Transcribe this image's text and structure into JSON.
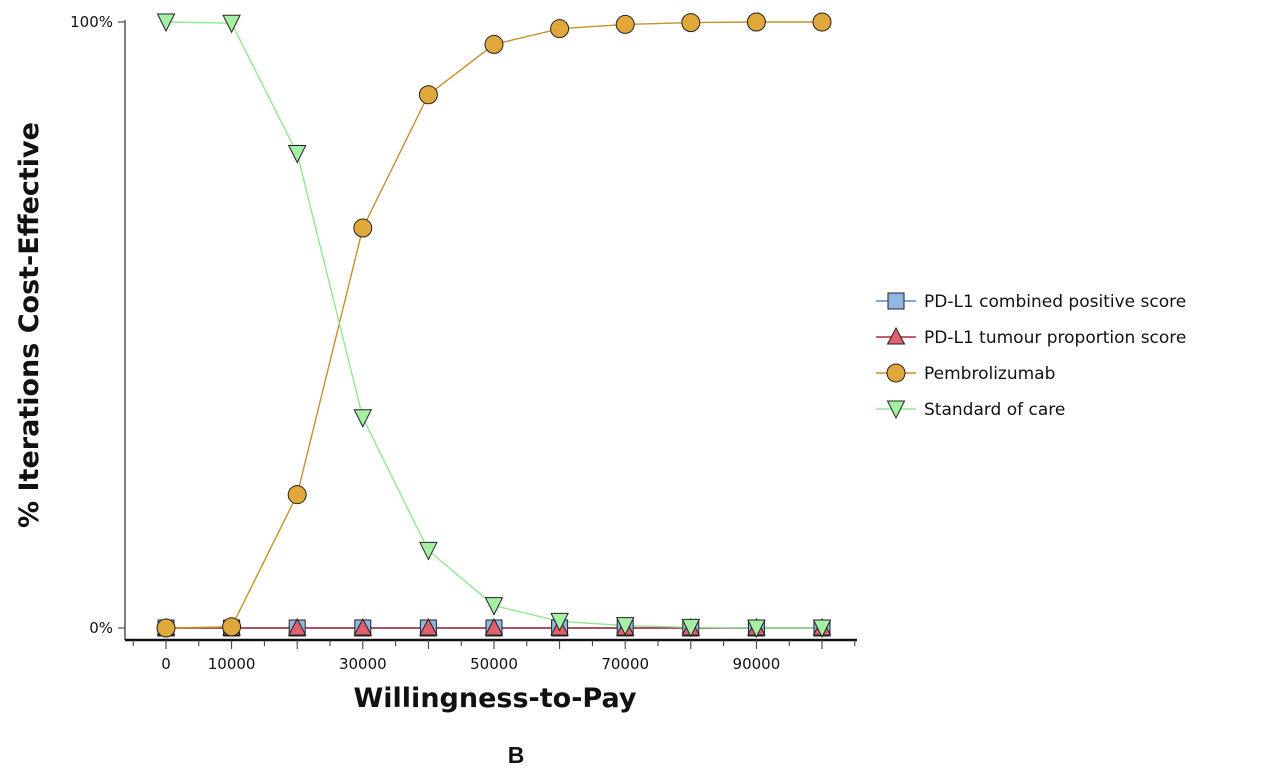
{
  "panel_label": "B",
  "chart_data": {
    "type": "line",
    "xlabel": "Willingness-to-Pay",
    "ylabel": "% Iterations Cost-Effective",
    "x": [
      0,
      10000,
      20000,
      30000,
      40000,
      50000,
      60000,
      70000,
      80000,
      90000,
      100000
    ],
    "x_tick_labels": [
      "0",
      "10000",
      "30000",
      "50000",
      "70000",
      "90000"
    ],
    "x_tick_values": [
      0,
      10000,
      30000,
      50000,
      70000,
      90000
    ],
    "xlim": [
      -5000,
      105000
    ],
    "ylim": [
      0,
      100
    ],
    "y_tick_labels": [
      "0%",
      "100%"
    ],
    "y_tick_values": [
      0,
      100
    ],
    "grid": false,
    "legend_position": "right",
    "series": [
      {
        "name": "PD-L1 combined positive score",
        "marker": "square",
        "color": "#4f8fcf",
        "fill": "#8fb8e0",
        "values": [
          0,
          0,
          0,
          0,
          0,
          0,
          0,
          0,
          0,
          0,
          0
        ]
      },
      {
        "name": "PD-L1 tumour proportion score",
        "marker": "triangle-up",
        "color": "#b02a3a",
        "fill": "#e06070",
        "values": [
          0,
          0,
          0,
          0,
          0,
          0,
          0,
          0,
          0,
          0,
          0
        ]
      },
      {
        "name": "Pembrolizumab",
        "marker": "circle",
        "color": "#c8902a",
        "fill": "#e0a83a",
        "values": [
          0,
          0.2,
          22,
          66,
          88,
          96.3,
          98.9,
          99.6,
          99.9,
          100,
          100
        ]
      },
      {
        "name": "Standard of care",
        "marker": "triangle-down",
        "color": "#90e890",
        "fill": "#a6f0a6",
        "values": [
          100,
          99.8,
          78.3,
          34.7,
          12.8,
          3.7,
          1.1,
          0.4,
          0.1,
          0,
          0
        ]
      }
    ]
  }
}
